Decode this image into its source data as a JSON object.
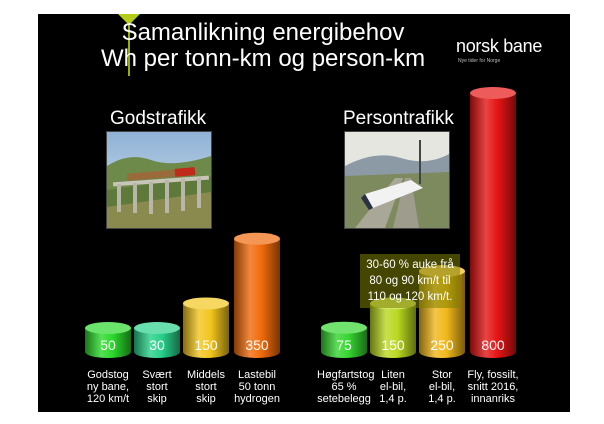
{
  "slide": {
    "title_line1": "Samanlikning energibehov",
    "title_line2": "Wh per tonn-km og person-km",
    "logo_name": "norsk bane",
    "logo_tagline": "Nye tider for Norge",
    "section_gods": "Godstrafikk",
    "section_person": "Persontrafikk",
    "note": "30-60 % auke frå 80 og 90 km/t til 110 og 120 km/t.",
    "colors": {
      "background": "#000000",
      "accent": "#b5cc18"
    }
  },
  "chart_data": {
    "type": "bar",
    "style": "3d-cylinder",
    "grid": false,
    "title": "Samanlikning energibehov Wh per tonn-km og person-km",
    "groups": [
      "Godstrafikk",
      "Persontrafikk"
    ],
    "categories": [
      "Godstog\nny bane,\n120 km/t",
      "Svært\nstort\nskip",
      "Middels\nstort\nskip",
      "Lastebil\n50 tonn\nhydrogen",
      "Høgfartstog\n65 %\nsetebelegg",
      "Liten\nel-bil,\n1,4 p.",
      "Stor\nel-bil,\n1,4 p.",
      "Fly, fossilt,\nsnitt 2016,\ninnanriks"
    ],
    "values": [
      50,
      30,
      150,
      350,
      75,
      150,
      250,
      800
    ],
    "colors": [
      "#2bd92b",
      "#27d18a",
      "#f2c61e",
      "#f06a0a",
      "#35d530",
      "#b9d820",
      "#f0b81a",
      "#e51414"
    ],
    "ylim": [
      0,
      800
    ]
  }
}
